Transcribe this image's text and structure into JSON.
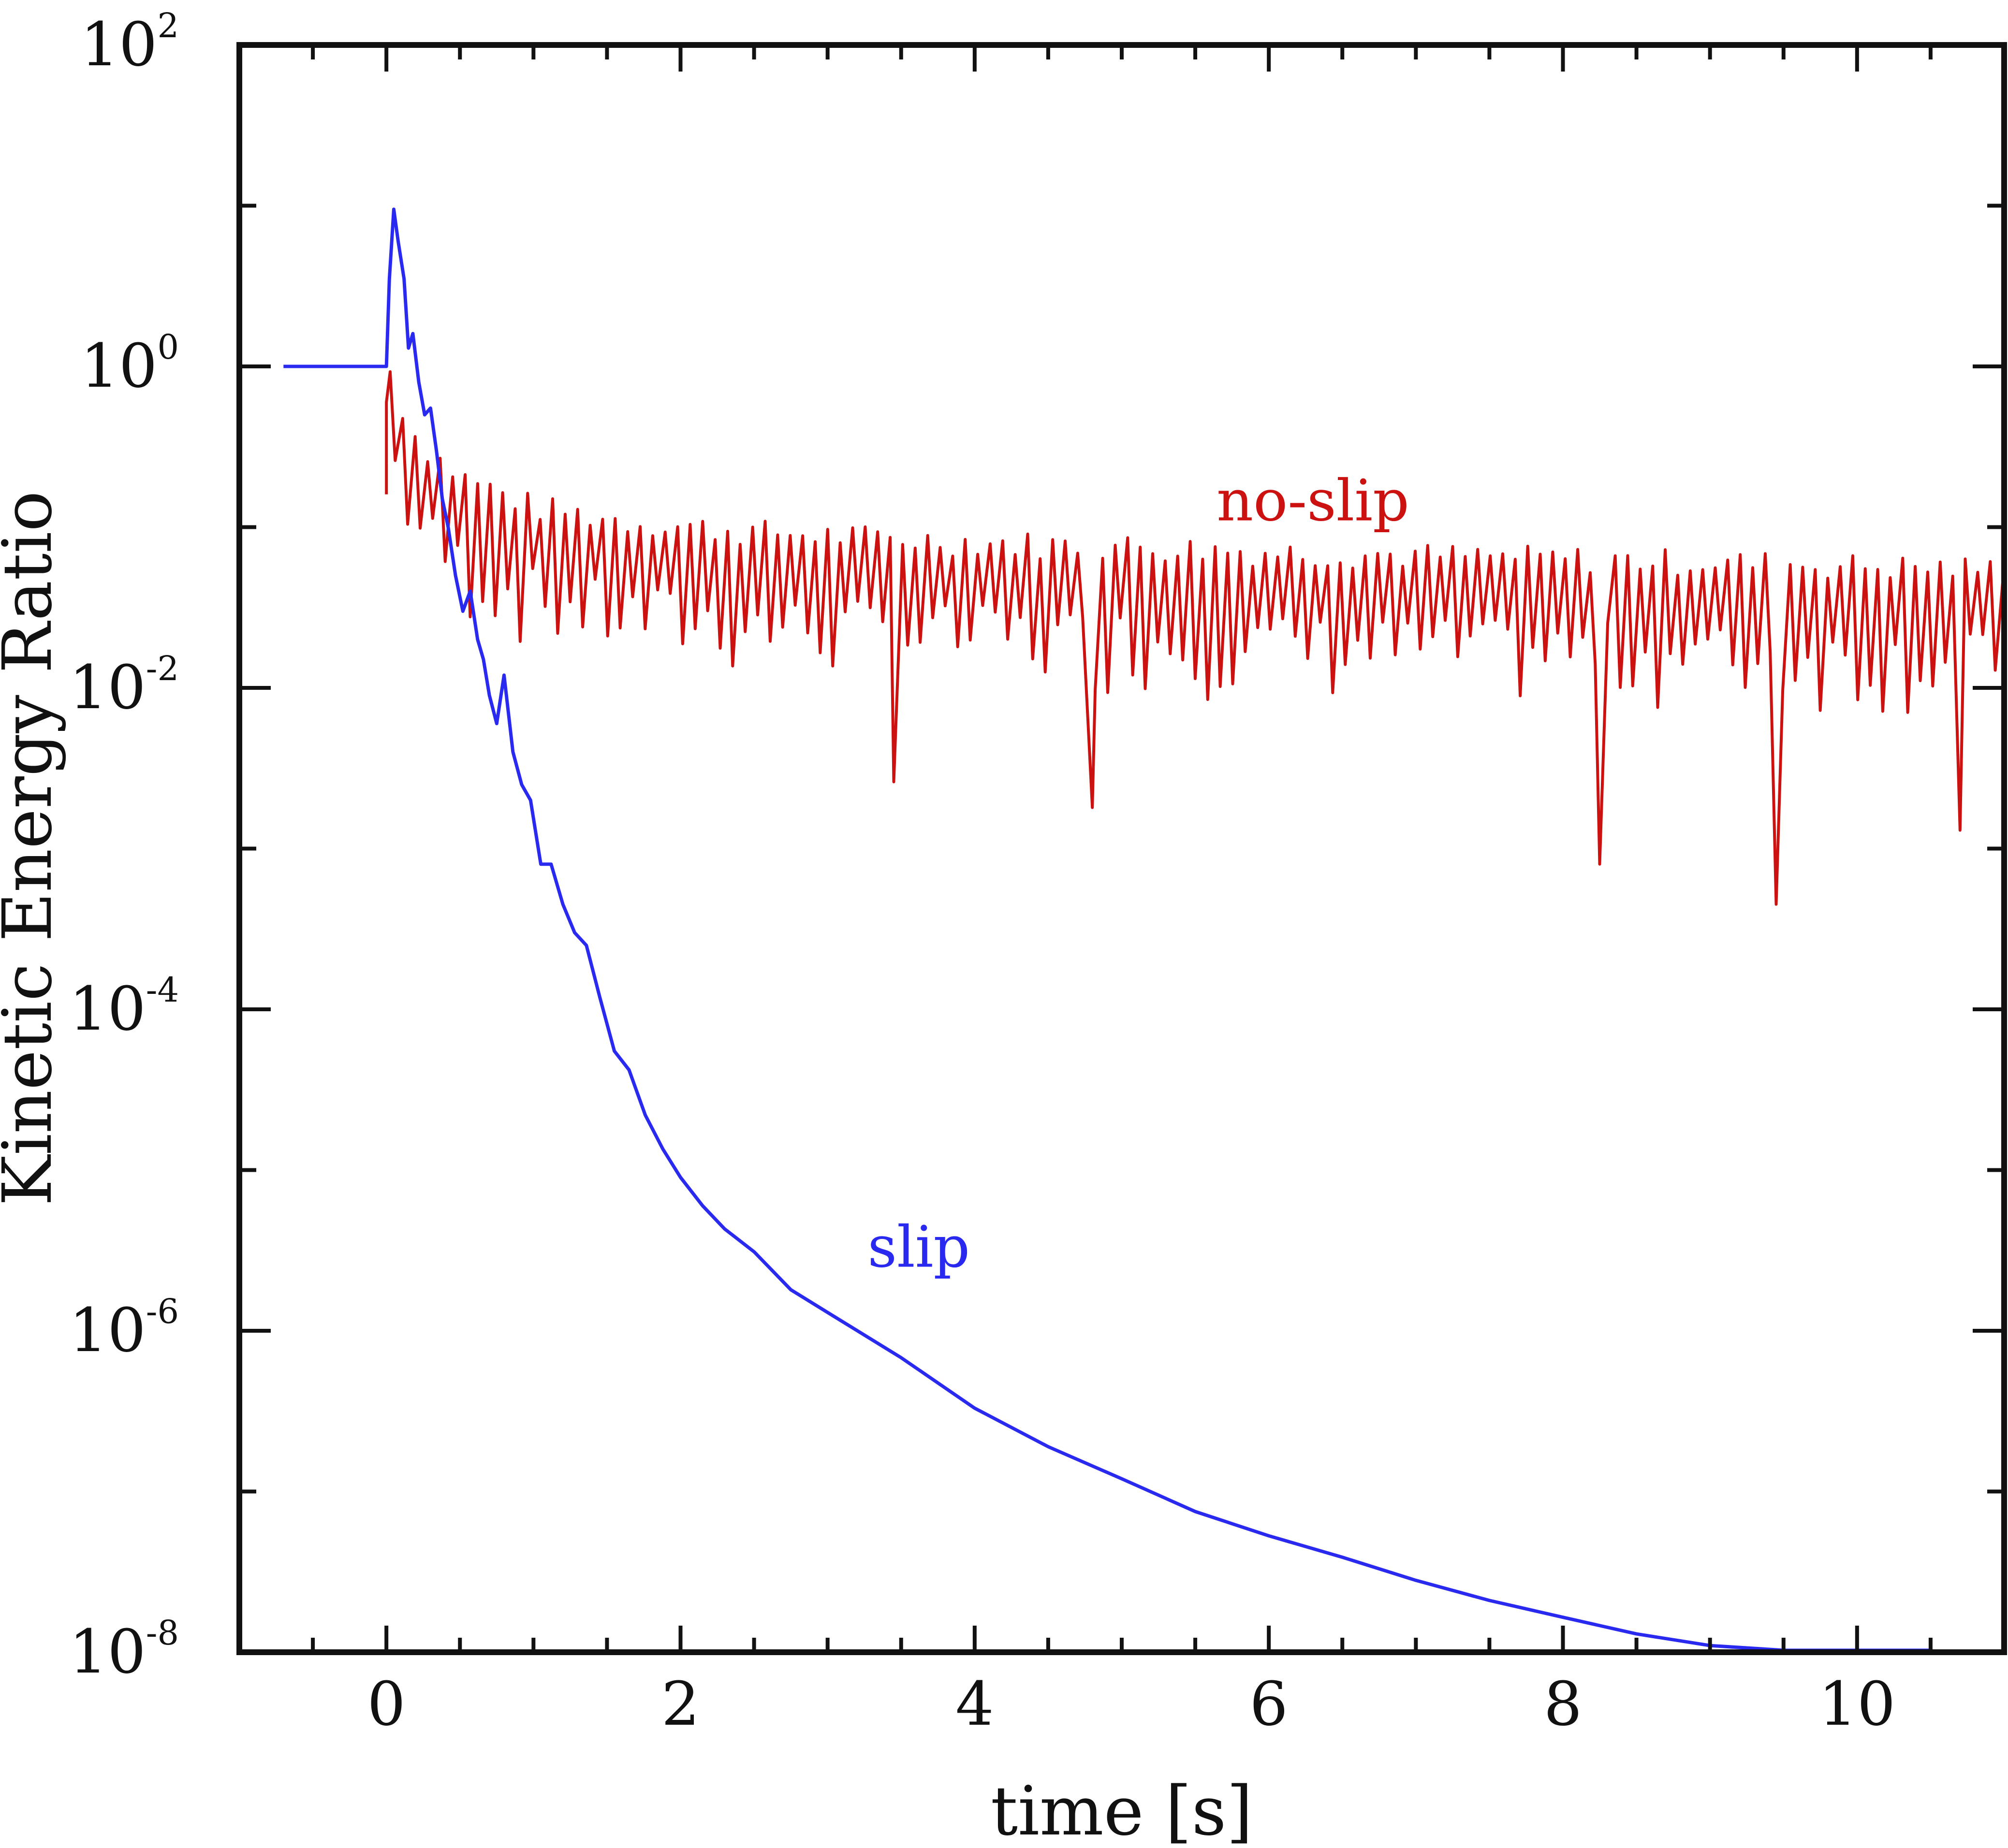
{
  "chart_data": {
    "type": "line",
    "title": "",
    "xlabel": "time [s]",
    "ylabel": "Kinetic Energy Ratio",
    "xlim": [
      -1,
      11
    ],
    "ylim": [
      1e-08,
      100
    ],
    "yscale": "log",
    "grid": false,
    "x_ticks": [
      0,
      2,
      4,
      6,
      8,
      10
    ],
    "x_tick_labels": [
      "0",
      "2",
      "4",
      "6",
      "8",
      "10"
    ],
    "y_ticks": [
      {
        "value": 1e-08,
        "base": "10",
        "exp": "-8"
      },
      {
        "value": 1e-06,
        "base": "10",
        "exp": "-6"
      },
      {
        "value": 0.0001,
        "base": "10",
        "exp": "-4"
      },
      {
        "value": 0.01,
        "base": "10",
        "exp": "-2"
      },
      {
        "value": 1,
        "base": "10",
        "exp": "0"
      },
      {
        "value": 100,
        "base": "10",
        "exp": "2"
      }
    ],
    "series": [
      {
        "name": "slip",
        "label": "slip",
        "color": "#2929f0",
        "label_at": {
          "x": 3.62,
          "y": 2.5e-06
        },
        "x": [
          -0.7,
          -0.3,
          0.0,
          0.02,
          0.05,
          0.08,
          0.12,
          0.15,
          0.18,
          0.22,
          0.26,
          0.3,
          0.34,
          0.38,
          0.42,
          0.47,
          0.52,
          0.57,
          0.62,
          0.66,
          0.7,
          0.75,
          0.8,
          0.86,
          0.92,
          0.98,
          1.05,
          1.12,
          1.2,
          1.28,
          1.36,
          1.45,
          1.55,
          1.65,
          1.76,
          1.88,
          2.0,
          2.15,
          2.3,
          2.5,
          2.75,
          3.0,
          3.5,
          4.0,
          4.5,
          5.0,
          5.5,
          6.0,
          6.5,
          7.0,
          7.5,
          8.0,
          8.5,
          9.0,
          9.5,
          10.0,
          10.5
        ],
        "y": [
          1,
          1,
          1,
          3.5,
          9.5,
          6.0,
          3.5,
          1.3,
          1.6,
          0.8,
          0.5,
          0.55,
          0.3,
          0.15,
          0.1,
          0.05,
          0.03,
          0.04,
          0.02,
          0.015,
          0.009,
          0.006,
          0.012,
          0.004,
          0.0025,
          0.002,
          0.0008,
          0.0008,
          0.00045,
          0.0003,
          0.00025,
          0.00012,
          5.5e-05,
          4.2e-05,
          2.2e-05,
          1.35e-05,
          9e-06,
          6e-06,
          4.3e-06,
          3.1e-06,
          1.8e-06,
          1.3e-06,
          6.8e-07,
          3.3e-07,
          1.9e-07,
          1.2e-07,
          7.5e-08,
          5.3e-08,
          3.9e-08,
          2.8e-08,
          2.1e-08,
          1.65e-08,
          1.3e-08,
          1.1e-08,
          1e-08,
          1e-08,
          1e-08
        ]
      },
      {
        "name": "no-slip",
        "label": "no-slip",
        "color": "#cc1111",
        "label_at": {
          "x": 6.3,
          "y": 0.11
        },
        "x": [
          0.0,
          0.05,
          0.1,
          0.2,
          0.3,
          0.4,
          0.5,
          0.6,
          0.7,
          0.8,
          1.0,
          1.2,
          1.4,
          1.6,
          1.8,
          2.0,
          2.5,
          3.0,
          3.5,
          4.0,
          4.5,
          5.0,
          5.5,
          6.0,
          6.5,
          7.0,
          7.5,
          8.0,
          8.5,
          9.0,
          9.5,
          10.0,
          10.5,
          11.0
        ],
        "y": [
          0.6,
          0.55,
          0.3,
          0.22,
          0.18,
          0.15,
          0.13,
          0.12,
          0.11,
          0.1,
          0.085,
          0.08,
          0.075,
          0.07,
          0.068,
          0.065,
          0.06,
          0.057,
          0.054,
          0.052,
          0.05,
          0.049,
          0.047,
          0.045,
          0.044,
          0.043,
          0.042,
          0.041,
          0.04,
          0.039,
          0.038,
          0.037,
          0.036,
          0.035
        ],
        "dips": [
          {
            "x": 3.45,
            "y": 0.0026
          },
          {
            "x": 4.8,
            "y": 0.0018
          },
          {
            "x": 8.25,
            "y": 0.0008
          },
          {
            "x": 9.45,
            "y": 0.00045
          },
          {
            "x": 10.7,
            "y": 0.0013
          }
        ]
      }
    ]
  }
}
